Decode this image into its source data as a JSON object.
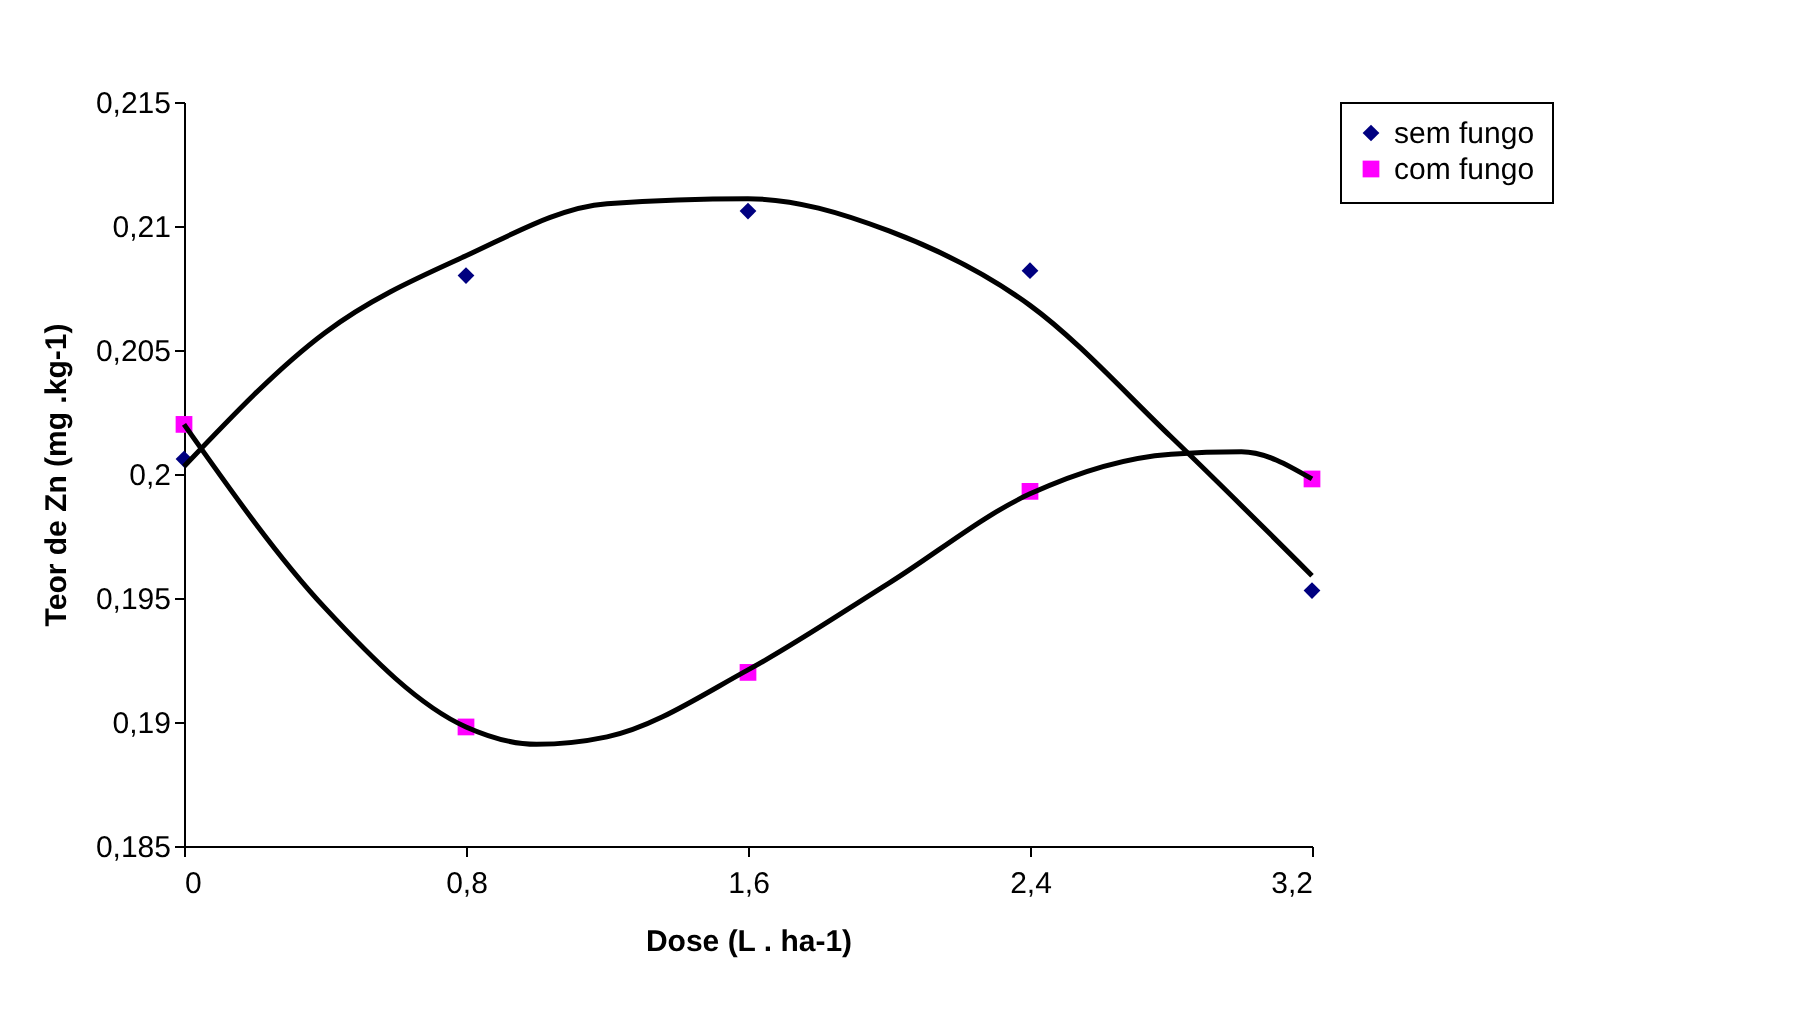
{
  "chart_data": {
    "type": "scatter",
    "xlabel": "Dose (L . ha-1)",
    "ylabel": "Teor de Zn (mg .kg-1)",
    "legend": "right",
    "grid": false,
    "xlim": [
      0,
      3.2
    ],
    "xticks": [
      0,
      {
        "value": 0.8,
        "label": "0,8"
      },
      {
        "value": 1.6,
        "label": "1,6"
      },
      {
        "value": 2.4,
        "label": "2,4"
      },
      {
        "value": 3.2,
        "label": "3,2"
      }
    ],
    "ylim": [
      0.185,
      0.215
    ],
    "yticks": [
      {
        "value": 0.185,
        "label": "0,185"
      },
      {
        "value": 0.19,
        "label": "0,19"
      },
      {
        "value": 0.195,
        "label": "0,195"
      },
      {
        "value": 0.2,
        "label": "0,2"
      },
      {
        "value": 0.205,
        "label": "0,205"
      },
      {
        "value": 0.21,
        "label": "0,21"
      },
      {
        "value": 0.215,
        "label": "0,215"
      }
    ],
    "series": [
      {
        "name": "sem fungo",
        "color": "#000080",
        "marker": "diamond",
        "x": [
          0,
          0.8,
          1.6,
          2.4,
          3.2
        ],
        "values": [
          0.2006,
          0.208,
          0.2106,
          0.2082,
          0.1953
        ]
      },
      {
        "name": "com fungo",
        "color": "#ff00ff",
        "marker": "square",
        "x": [
          0,
          0.8,
          1.6,
          2.4,
          3.2
        ],
        "values": [
          0.202,
          0.1898,
          0.192,
          0.1993,
          0.1998
        ]
      },
      {
        "type": "line",
        "color": "#000000",
        "marker": "none",
        "x": [
          0,
          0.4,
          0.8,
          1.2,
          1.6,
          2.0,
          2.4,
          2.8,
          3.2
        ],
        "values": [
          0.2003,
          0.2057,
          0.2088,
          0.2109,
          0.2111,
          0.2098,
          0.2068,
          0.2015,
          0.1959
        ]
      },
      {
        "type": "line",
        "color": "#000000",
        "marker": "none",
        "x": [
          0,
          0.4,
          0.8,
          1.0,
          1.2,
          1.6,
          2.0,
          2.4,
          2.8,
          3.0,
          3.2
        ],
        "values": [
          0.202,
          0.1946,
          0.1898,
          0.1891,
          0.1894,
          0.1921,
          0.1956,
          0.1992,
          0.2008,
          0.2009,
          0.1998
        ]
      }
    ]
  }
}
